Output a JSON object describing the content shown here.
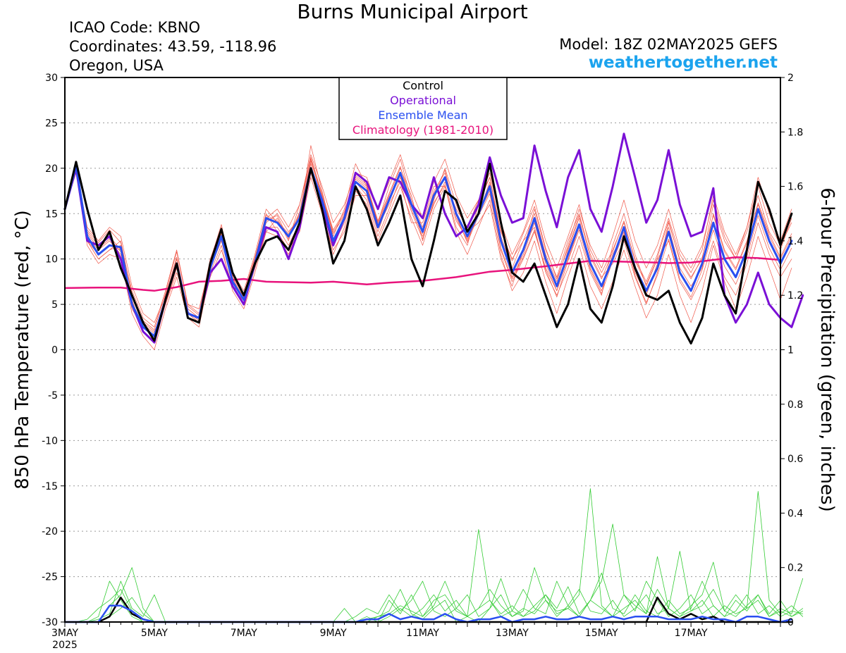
{
  "header": {
    "title": "Burns Municipal Airport",
    "icao": "ICAO Code: KBNO",
    "coordinates": "Coordinates: 43.59, -118.96",
    "region": "Oregon, USA",
    "model": "Model: 18Z 02MAY2025 GEFS",
    "website": "weathertogether.net"
  },
  "colors": {
    "members": "#f0584a",
    "control": "#000000",
    "operational": "#7a10d6",
    "ensemble_mean": "#2a4ff0",
    "climatology": "#e8137c",
    "precip_members": "#33cc33",
    "website": "#1ba3ee"
  },
  "chart_data": {
    "type": "line",
    "title": "Burns Municipal Airport",
    "ylabel": "850 hPa Temperature (red, °C)",
    "y2label": "6-hour Precipitation (green, inches)",
    "ylim": [
      -30,
      30
    ],
    "y2lim": [
      0,
      2
    ],
    "yticks": [
      30,
      25,
      20,
      15,
      10,
      5,
      0,
      -5,
      -10,
      -15,
      -20,
      -25,
      -30
    ],
    "y2ticks": [
      "2",
      "1.8",
      "1.6",
      "1.4",
      "1.2",
      "1",
      "0.8",
      "0.6",
      "0.4",
      "0.2",
      "0"
    ],
    "x_start_day": 3.0,
    "x_end_day": 19.0,
    "xticks": [
      {
        "day": 3,
        "label": "3MAY",
        "sublabel": "2025"
      },
      {
        "day": 5,
        "label": "5MAY"
      },
      {
        "day": 7,
        "label": "7MAY"
      },
      {
        "day": 9,
        "label": "9MAY"
      },
      {
        "day": 11,
        "label": "11MAY"
      },
      {
        "day": 13,
        "label": "13MAY"
      },
      {
        "day": 15,
        "label": "15MAY"
      },
      {
        "day": 17,
        "label": "17MAY"
      }
    ],
    "grid": true,
    "legend_position": "top-center",
    "legend": [
      {
        "name": "Control",
        "color_key": "control"
      },
      {
        "name": "Operational",
        "color_key": "operational"
      },
      {
        "name": "Ensemble Mean",
        "color_key": "ensemble_mean"
      },
      {
        "name": "Climatology (1981-2010)",
        "color_key": "climatology"
      }
    ],
    "x_step_days": 0.25,
    "control": [
      15.5,
      20.7,
      15.5,
      11.0,
      13.0,
      9.0,
      6.0,
      3.0,
      1.0,
      5.5,
      9.5,
      3.5,
      3.0,
      9.5,
      13.3,
      8.5,
      6.0,
      9.5,
      12.0,
      12.5,
      11.0,
      14.0,
      20.0,
      15.5,
      9.5,
      12.0,
      18.0,
      15.5,
      11.5,
      14.0,
      17.0,
      10.0,
      7.0,
      12.0,
      17.5,
      16.5,
      13.0,
      15.0,
      20.5,
      14.0,
      8.5,
      7.5,
      9.5,
      6.0,
      2.5,
      5.0,
      10.0,
      4.5,
      3.0,
      7.0,
      12.5,
      9.0,
      6.0,
      5.5,
      6.5,
      3.0,
      0.7,
      3.5,
      9.5,
      6.0,
      4.0,
      11.0,
      18.5,
      15.5,
      11.5,
      15.0
    ],
    "operational": [
      15.5,
      20.0,
      12.0,
      11.5,
      12.5,
      10.0,
      5.0,
      2.0,
      0.8,
      5.5,
      9.5,
      4.0,
      3.5,
      8.5,
      10.0,
      7.0,
      5.0,
      9.5,
      13.5,
      13.0,
      10.0,
      13.5,
      20.0,
      16.0,
      11.5,
      14.5,
      19.5,
      18.5,
      15.5,
      19.0,
      18.5,
      16.0,
      14.5,
      19.0,
      15.0,
      12.5,
      13.5,
      16.0,
      21.2,
      17.0,
      14.0,
      14.5,
      22.5,
      17.5,
      13.5,
      19.0,
      22.0,
      15.5,
      13.0,
      18.0,
      23.8,
      19.0,
      14.0,
      16.5,
      22.0,
      16.0,
      12.5,
      13.0,
      17.8,
      6.0,
      3.0,
      5.0,
      8.5,
      5.0,
      3.5,
      2.5,
      6.0
    ],
    "ensemble_mean": [
      15.5,
      20.3,
      12.5,
      10.5,
      11.5,
      11.3,
      5.0,
      2.5,
      1.5,
      5.5,
      9.5,
      4.0,
      3.5,
      9.0,
      12.5,
      7.5,
      5.5,
      9.5,
      14.5,
      14.0,
      12.5,
      14.5,
      20.0,
      16.5,
      12.0,
      14.5,
      18.5,
      17.5,
      13.5,
      16.5,
      19.5,
      16.0,
      13.0,
      17.0,
      19.0,
      15.0,
      12.5,
      15.0,
      18.0,
      12.0,
      8.5,
      11.0,
      14.5,
      10.0,
      7.0,
      10.5,
      13.8,
      9.5,
      7.0,
      10.0,
      13.5,
      9.0,
      6.5,
      9.0,
      13.0,
      8.5,
      6.5,
      9.5,
      14.0,
      10.0,
      8.0,
      11.0,
      15.5,
      12.0,
      9.5,
      12.0
    ],
    "climatology": [
      [
        3.0,
        6.8
      ],
      [
        3.75,
        6.85
      ],
      [
        4.25,
        6.85
      ],
      [
        4.75,
        6.6
      ],
      [
        5.0,
        6.5
      ],
      [
        5.5,
        6.9
      ],
      [
        6.0,
        7.5
      ],
      [
        6.5,
        7.6
      ],
      [
        7.0,
        7.8
      ],
      [
        7.5,
        7.5
      ],
      [
        8.5,
        7.4
      ],
      [
        9.0,
        7.5
      ],
      [
        9.75,
        7.2
      ],
      [
        10.25,
        7.4
      ],
      [
        11.0,
        7.6
      ],
      [
        11.75,
        8.0
      ],
      [
        12.5,
        8.6
      ],
      [
        13.0,
        8.8
      ],
      [
        13.75,
        9.2
      ],
      [
        14.25,
        9.5
      ],
      [
        14.75,
        9.8
      ],
      [
        15.5,
        9.7
      ],
      [
        16.25,
        9.6
      ],
      [
        16.5,
        9.55
      ],
      [
        17.0,
        9.6
      ],
      [
        17.5,
        9.9
      ],
      [
        18.0,
        10.2
      ],
      [
        18.5,
        10.1
      ],
      [
        19.0,
        9.9
      ]
    ],
    "members_t850": [
      [
        15.5,
        20.5,
        13.0,
        11.5,
        12.5,
        11.0,
        5.0,
        2.0,
        1.0,
        6.0,
        10.0,
        4.0,
        3.0,
        8.0,
        11.0,
        7.0,
        6.0,
        9.0,
        13.0,
        14.5,
        12.0,
        16.0,
        21.0,
        17.0,
        13.0,
        15.0,
        19.0,
        18.0,
        14.0,
        17.0,
        20.0,
        17.0,
        12.0,
        16.5,
        20.0,
        16.0,
        13.0,
        14.0,
        16.0,
        10.0,
        7.0,
        11.0,
        15.5,
        11.0,
        8.0,
        12.0,
        15.0,
        10.5,
        8.0,
        9.5,
        12.0,
        8.0,
        5.0,
        8.5,
        14.0,
        10.0,
        8.0,
        10.0,
        16.0,
        12.0,
        10.0,
        13.0,
        17.0,
        13.0,
        11.0,
        14.5
      ],
      [
        15.5,
        19.5,
        12.0,
        10.0,
        11.0,
        12.0,
        6.0,
        3.0,
        2.0,
        5.0,
        8.5,
        5.0,
        4.0,
        10.0,
        13.5,
        8.0,
        5.0,
        10.0,
        15.0,
        13.0,
        11.0,
        13.0,
        19.0,
        15.0,
        11.0,
        13.0,
        17.0,
        17.0,
        13.5,
        16.0,
        18.5,
        14.0,
        14.0,
        18.0,
        18.0,
        13.5,
        11.5,
        16.0,
        19.0,
        13.0,
        10.0,
        12.0,
        13.5,
        8.5,
        6.0,
        9.0,
        12.5,
        8.5,
        6.0,
        11.5,
        15.0,
        10.5,
        7.0,
        10.0,
        12.0,
        7.5,
        5.5,
        8.0,
        12.0,
        8.0,
        6.0,
        9.5,
        14.0,
        10.5,
        8.0,
        10.0
      ],
      [
        15.5,
        20.0,
        12.5,
        11.0,
        12.0,
        10.5,
        4.5,
        2.5,
        1.5,
        5.5,
        9.0,
        4.5,
        3.5,
        9.0,
        12.0,
        7.5,
        5.5,
        9.5,
        14.0,
        15.0,
        13.0,
        14.5,
        22.5,
        17.5,
        12.5,
        15.5,
        20.5,
        18.0,
        14.0,
        18.0,
        21.0,
        16.5,
        13.5,
        17.5,
        19.5,
        14.5,
        12.0,
        15.0,
        17.5,
        11.0,
        7.5,
        10.0,
        13.0,
        9.0,
        6.5,
        11.0,
        14.5,
        9.0,
        6.5,
        10.5,
        13.0,
        8.5,
        6.0,
        9.5,
        13.5,
        9.0,
        7.0,
        9.0,
        15.0,
        11.0,
        9.0,
        12.0,
        16.0,
        12.5,
        10.0,
        12.5
      ],
      [
        15.5,
        20.8,
        12.0,
        10.0,
        11.0,
        11.5,
        6.5,
        3.5,
        2.5,
        6.5,
        11.0,
        5.0,
        4.5,
        9.5,
        13.0,
        8.5,
        6.5,
        10.5,
        15.5,
        14.0,
        12.5,
        15.0,
        20.5,
        16.0,
        11.5,
        14.0,
        18.0,
        16.5,
        12.5,
        15.5,
        19.0,
        15.5,
        12.5,
        16.0,
        18.5,
        15.5,
        13.5,
        16.5,
        19.5,
        14.0,
        10.5,
        13.0,
        16.5,
        12.0,
        9.0,
        12.5,
        16.0,
        11.0,
        8.5,
        11.0,
        14.0,
        10.0,
        7.5,
        10.5,
        14.5,
        10.5,
        8.5,
        11.0,
        17.0,
        13.0,
        10.5,
        13.5,
        18.0,
        14.0,
        11.5,
        14.0
      ],
      [
        15.5,
        19.8,
        11.5,
        9.5,
        10.5,
        10.0,
        4.0,
        1.5,
        0.0,
        4.5,
        8.0,
        3.5,
        2.5,
        8.5,
        11.5,
        6.5,
        4.5,
        8.5,
        13.0,
        12.5,
        10.5,
        13.5,
        19.5,
        15.5,
        10.5,
        13.5,
        17.5,
        16.0,
        12.0,
        15.0,
        18.0,
        14.5,
        11.5,
        15.5,
        18.0,
        13.0,
        10.5,
        13.5,
        16.5,
        10.5,
        6.5,
        8.5,
        12.0,
        7.5,
        4.0,
        8.0,
        11.5,
        7.0,
        4.5,
        7.5,
        11.0,
        7.0,
        3.5,
        6.0,
        10.5,
        6.0,
        3.0,
        6.5,
        11.5,
        7.5,
        4.5,
        8.0,
        12.5,
        9.0,
        5.5,
        9.0
      ],
      [
        15.5,
        20.2,
        13.5,
        12.0,
        13.5,
        12.5,
        7.0,
        4.0,
        3.0,
        6.0,
        9.5,
        4.0,
        3.0,
        9.0,
        12.5,
        8.0,
        6.0,
        10.0,
        14.5,
        15.5,
        13.5,
        16.0,
        21.5,
        18.0,
        14.0,
        16.0,
        19.5,
        19.0,
        15.5,
        18.5,
        21.5,
        17.5,
        14.5,
        18.5,
        21.0,
        17.0,
        14.5,
        16.5,
        19.0,
        12.5,
        9.0,
        12.0,
        15.0,
        10.5,
        7.5,
        11.5,
        15.5,
        11.5,
        9.0,
        12.5,
        16.5,
        12.0,
        9.0,
        11.5,
        15.5,
        11.0,
        9.0,
        11.5,
        16.5,
        12.5,
        10.0,
        13.5,
        19.0,
        15.0,
        12.0,
        15.5
      ],
      [
        15.5,
        20.5,
        12.0,
        10.5,
        11.5,
        11.0,
        5.5,
        2.0,
        1.0,
        5.0,
        9.0,
        4.5,
        3.5,
        9.5,
        12.5,
        7.0,
        5.0,
        9.0,
        13.5,
        13.5,
        11.5,
        14.0,
        20.0,
        16.0,
        12.0,
        14.5,
        18.5,
        17.0,
        13.0,
        16.5,
        19.5,
        16.0,
        13.0,
        17.0,
        19.0,
        15.0,
        12.5,
        15.0,
        18.5,
        12.0,
        8.0,
        10.5,
        14.0,
        9.5,
        6.5,
        10.0,
        13.5,
        9.5,
        7.0,
        10.0,
        13.5,
        9.0,
        6.5,
        9.0,
        13.0,
        8.5,
        6.5,
        9.5,
        14.0,
        10.0,
        8.0,
        11.0,
        15.5,
        12.0,
        9.5,
        12.0
      ],
      [
        15.5,
        19.9,
        12.8,
        11.2,
        12.2,
        10.8,
        5.2,
        2.8,
        1.8,
        5.8,
        10.2,
        4.2,
        3.2,
        8.8,
        12.8,
        7.8,
        5.8,
        9.8,
        14.2,
        14.8,
        12.2,
        15.2,
        21.2,
        17.2,
        13.2,
        15.2,
        19.2,
        18.2,
        14.2,
        17.2,
        20.2,
        16.2,
        12.8,
        17.2,
        19.8,
        14.8,
        11.8,
        14.8,
        17.2,
        11.2,
        7.8,
        10.2,
        13.2,
        8.8,
        5.8,
        9.8,
        13.2,
        8.8,
        6.2,
        9.8,
        12.8,
        8.2,
        5.2,
        8.2,
        12.2,
        7.8,
        5.8,
        8.8,
        13.2,
        9.2,
        7.2,
        10.2,
        14.8,
        11.2,
        8.8,
        11.2
      ],
      [
        15.5,
        20.6,
        13.2,
        11.8,
        13.2,
        11.8,
        6.2,
        3.2,
        2.2,
        6.2,
        10.8,
        4.8,
        3.8,
        9.8,
        13.8,
        8.2,
        6.2,
        10.2,
        14.8,
        14.2,
        12.8,
        14.8,
        20.8,
        16.8,
        12.8,
        14.8,
        18.8,
        17.8,
        13.8,
        16.8,
        19.2,
        15.2,
        12.2,
        16.2,
        18.2,
        14.2,
        12.2,
        15.2,
        18.2,
        13.2,
        9.8,
        12.8,
        15.8,
        11.2,
        7.8,
        11.2,
        14.8,
        10.2,
        7.8,
        10.8,
        14.2,
        9.8,
        7.2,
        10.2,
        14.2,
        9.8,
        7.8,
        10.2,
        14.8,
        10.8,
        8.8,
        11.8,
        16.2,
        12.8,
        10.2,
        12.8
      ]
    ],
    "precip_x_step_days": 0.25,
    "precip_members": [
      [
        0,
        0,
        0,
        0.02,
        0.15,
        0.08,
        0.02,
        0,
        0,
        0,
        0,
        0,
        0,
        0,
        0,
        0,
        0,
        0,
        0,
        0,
        0,
        0,
        0,
        0,
        0,
        0.05,
        0,
        0,
        0.02,
        0.04,
        0.12,
        0.03,
        0.01,
        0.05,
        0.08,
        0,
        0.02,
        0,
        0.05,
        0.1,
        0.02,
        0.05,
        0.03,
        0.08,
        0.02,
        0.06,
        0.12,
        0.04,
        0.03,
        0.08,
        0.02,
        0.05,
        0.1,
        0.03,
        0.05,
        0.02,
        0.04,
        0.08,
        0.02,
        0.06,
        0.03,
        0.05,
        0.08,
        0.02,
        0.04,
        0.02,
        0.05
      ],
      [
        0,
        0,
        0.01,
        0.05,
        0.08,
        0.12,
        0.04,
        0,
        0,
        0,
        0,
        0,
        0,
        0,
        0,
        0,
        0,
        0,
        0,
        0,
        0,
        0,
        0,
        0,
        0,
        0,
        0,
        0.02,
        0,
        0.08,
        0.03,
        0.1,
        0.02,
        0.06,
        0.15,
        0.05,
        0.02,
        0.34,
        0.08,
        0.02,
        0.04,
        0.12,
        0.05,
        0.03,
        0.15,
        0.06,
        0.02,
        0.08,
        0.18,
        0.05,
        0.03,
        0.1,
        0.04,
        0.02,
        0.08,
        0.03,
        0.05,
        0.15,
        0.06,
        0.02,
        0.04,
        0.1,
        0.03,
        0.06,
        0.02,
        0.04,
        0.03
      ],
      [
        0,
        0,
        0,
        0,
        0.06,
        0.1,
        0.2,
        0.05,
        0,
        0,
        0,
        0,
        0,
        0,
        0,
        0,
        0,
        0,
        0,
        0,
        0,
        0,
        0,
        0,
        0,
        0,
        0.02,
        0.05,
        0.03,
        0.1,
        0.04,
        0.08,
        0.15,
        0.04,
        0.02,
        0.05,
        0.1,
        0.02,
        0.05,
        0.16,
        0.04,
        0.02,
        0.06,
        0.1,
        0.05,
        0.13,
        0.03,
        0.08,
        0.05,
        0.02,
        0.1,
        0.06,
        0.03,
        0.24,
        0.05,
        0.02,
        0.06,
        0.1,
        0.22,
        0.04,
        0.02,
        0.06,
        0.1,
        0.03,
        0.08,
        0.02,
        0.04
      ],
      [
        0,
        0,
        0,
        0.01,
        0.03,
        0.15,
        0.05,
        0.02,
        0.1,
        0,
        0,
        0,
        0,
        0,
        0,
        0,
        0,
        0,
        0,
        0,
        0,
        0,
        0,
        0,
        0,
        0,
        0,
        0,
        0,
        0.02,
        0.05,
        0.02,
        0.05,
        0.1,
        0.04,
        0.08,
        0.02,
        0.05,
        0.12,
        0.06,
        0.02,
        0.04,
        0.2,
        0.08,
        0.04,
        0.05,
        0.1,
        0.49,
        0.06,
        0.02,
        0.05,
        0.08,
        0.03,
        0.12,
        0.05,
        0.26,
        0.04,
        0.06,
        0.12,
        0.04,
        0.1,
        0.05,
        0.48,
        0.08,
        0.03,
        0.06,
        0.02
      ],
      [
        0,
        0,
        0,
        0,
        0.02,
        0.05,
        0.09,
        0.03,
        0,
        0,
        0,
        0,
        0,
        0,
        0,
        0,
        0,
        0,
        0,
        0,
        0,
        0,
        0,
        0,
        0,
        0,
        0,
        0.01,
        0.02,
        0.03,
        0.06,
        0.04,
        0.02,
        0.08,
        0.1,
        0.04,
        0.02,
        0.05,
        0.08,
        0.03,
        0.06,
        0.02,
        0.04,
        0.1,
        0.03,
        0.05,
        0.02,
        0.08,
        0.15,
        0.36,
        0.1,
        0.04,
        0.15,
        0.08,
        0.02,
        0.05,
        0.1,
        0.03,
        0.06,
        0.02,
        0.08,
        0.04,
        0.1,
        0.02,
        0.05,
        0.03,
        0.16
      ]
    ],
    "precip_control": [
      0,
      0,
      0,
      0,
      0.02,
      0.09,
      0.03,
      0.01,
      0,
      0,
      0,
      0,
      0,
      0,
      0,
      0,
      0,
      0,
      0,
      0,
      0,
      0,
      0,
      0,
      0,
      0,
      0,
      0,
      0,
      0,
      0,
      0,
      0,
      0,
      0,
      0,
      0,
      0,
      0,
      0,
      0,
      0,
      0,
      0,
      0,
      0,
      0,
      0,
      0,
      0,
      0,
      0,
      0,
      0.09,
      0.03,
      0.01,
      0.03,
      0.01,
      0.02,
      0,
      0,
      0,
      0,
      0,
      0,
      0
    ],
    "precip_mean": [
      0,
      0,
      0,
      0,
      0.06,
      0.06,
      0.04,
      0.01,
      0,
      0,
      0,
      0,
      0,
      0,
      0,
      0,
      0,
      0,
      0,
      0,
      0,
      0,
      0,
      0,
      0,
      0,
      0,
      0.01,
      0.01,
      0.03,
      0.01,
      0.02,
      0.01,
      0.01,
      0.03,
      0.01,
      0,
      0.01,
      0.01,
      0.02,
      0,
      0.01,
      0.01,
      0.02,
      0.01,
      0.01,
      0.02,
      0.01,
      0.01,
      0.02,
      0.01,
      0.02,
      0.02,
      0.02,
      0.01,
      0.01,
      0.01,
      0.02,
      0.01,
      0.01,
      0,
      0.02,
      0.02,
      0.01,
      0,
      0.01
    ]
  }
}
